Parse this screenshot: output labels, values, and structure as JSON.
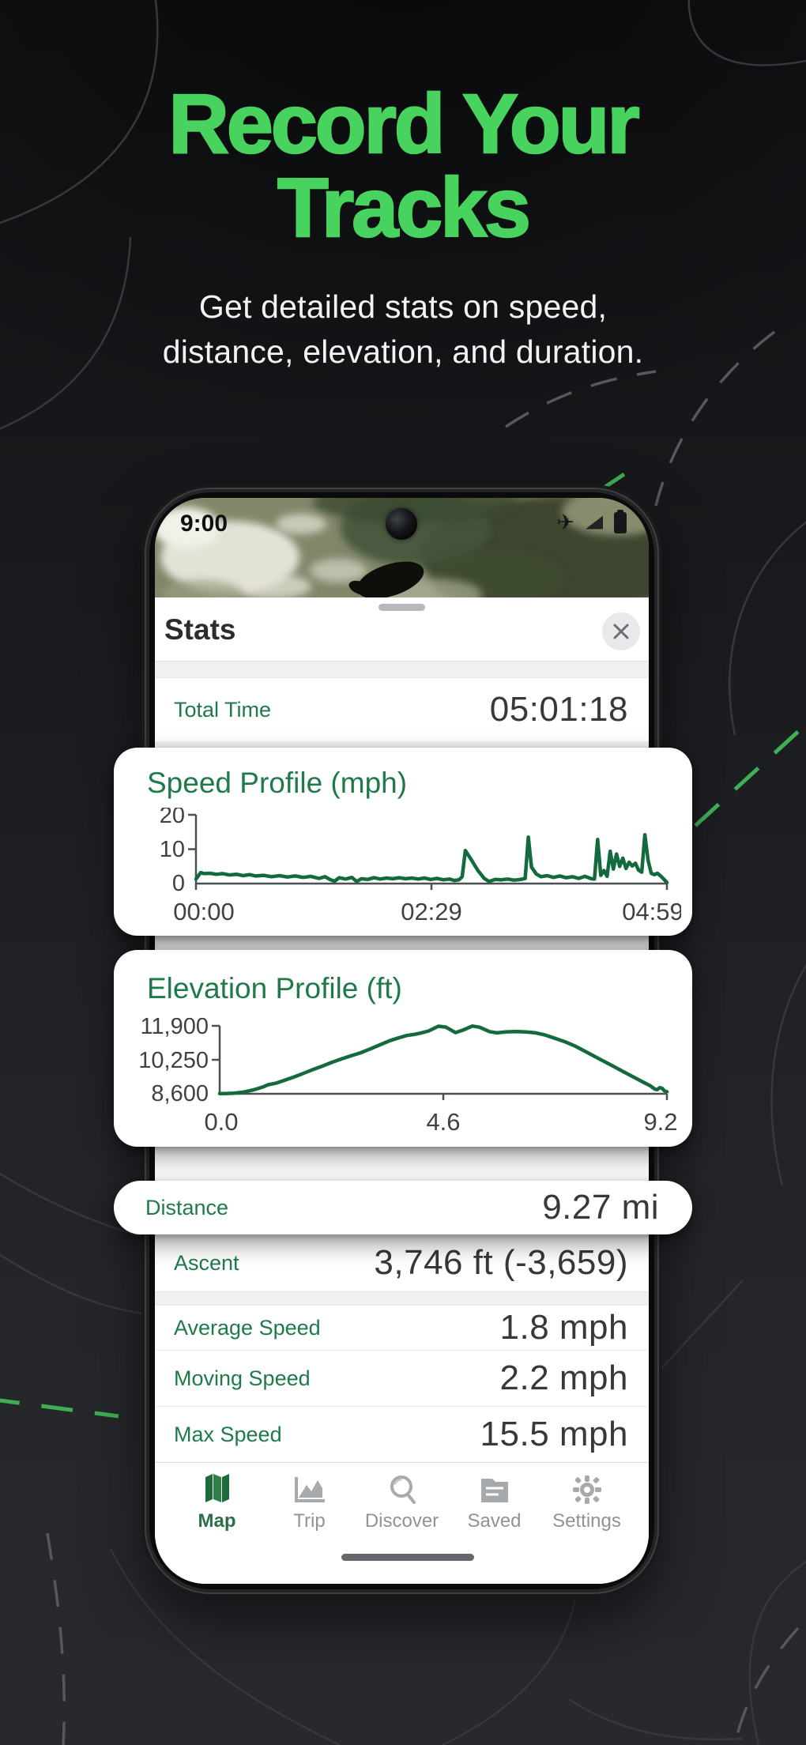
{
  "hero": {
    "title_line1": "Record Your",
    "title_line2": "Tracks",
    "subtitle_line1": "Get detailed stats on speed,",
    "subtitle_line2": "distance, elevation, and duration.",
    "accent_color": "#48d35e"
  },
  "phone": {
    "status_bar": {
      "time": "9:00",
      "icons": [
        "airplane-mode-icon",
        "signal-icon",
        "battery-icon"
      ]
    },
    "sheet": {
      "title": "Stats"
    }
  },
  "stats": {
    "total_time": {
      "label": "Total Time",
      "value": "05:01:18"
    },
    "distance": {
      "label": "Distance",
      "value": "9.27 mi"
    },
    "ascent": {
      "label": "Ascent",
      "value": "3,746 ft (-3,659)"
    },
    "average_speed": {
      "label": "Average Speed",
      "value": "1.8 mph"
    },
    "moving_speed": {
      "label": "Moving Speed",
      "value": "2.2 mph"
    },
    "max_speed": {
      "label": "Max Speed",
      "value": "15.5 mph"
    }
  },
  "chart_data": [
    {
      "id": "speed",
      "type": "line",
      "title": "Speed Profile (mph)",
      "xlim": [
        0,
        299
      ],
      "ylim": [
        0,
        20
      ],
      "x_ticks": [
        "00:00",
        "02:29",
        "04:59"
      ],
      "y_ticks": [
        "0",
        "10",
        "20"
      ],
      "legend": "none",
      "grid": false,
      "line_color": "#136a3c",
      "points": [
        [
          0,
          1.3
        ],
        [
          3,
          3.2
        ],
        [
          5,
          2.9
        ],
        [
          9,
          3.0
        ],
        [
          13,
          2.7
        ],
        [
          17,
          2.9
        ],
        [
          21,
          2.5
        ],
        [
          26,
          2.7
        ],
        [
          30,
          2.3
        ],
        [
          34,
          2.6
        ],
        [
          38,
          2.2
        ],
        [
          43,
          2.4
        ],
        [
          48,
          2.0
        ],
        [
          53,
          2.3
        ],
        [
          58,
          1.9
        ],
        [
          63,
          2.2
        ],
        [
          68,
          1.8
        ],
        [
          73,
          2.1
        ],
        [
          78,
          1.5
        ],
        [
          82,
          2.0
        ],
        [
          85,
          1.2
        ],
        [
          88,
          0.7
        ],
        [
          91,
          1.7
        ],
        [
          95,
          1.3
        ],
        [
          99,
          1.8
        ],
        [
          102,
          0.6
        ],
        [
          105,
          1.4
        ],
        [
          109,
          1.2
        ],
        [
          113,
          1.7
        ],
        [
          117,
          1.3
        ],
        [
          121,
          1.6
        ],
        [
          125,
          1.4
        ],
        [
          129,
          1.7
        ],
        [
          133,
          1.4
        ],
        [
          137,
          1.6
        ],
        [
          141,
          1.3
        ],
        [
          145,
          1.6
        ],
        [
          149,
          1.2
        ],
        [
          153,
          1.5
        ],
        [
          157,
          1.1
        ],
        [
          161,
          1.3
        ],
        [
          164,
          0.9
        ],
        [
          167,
          1.1
        ],
        [
          169,
          2.0
        ],
        [
          171,
          9.6
        ],
        [
          175,
          6.8
        ],
        [
          179,
          3.8
        ],
        [
          183,
          1.5
        ],
        [
          186,
          0.6
        ],
        [
          190,
          1.2
        ],
        [
          194,
          1.1
        ],
        [
          198,
          1.3
        ],
        [
          202,
          1.0
        ],
        [
          206,
          1.2
        ],
        [
          209,
          1.5
        ],
        [
          211,
          13.5
        ],
        [
          213,
          4.8
        ],
        [
          216,
          2.8
        ],
        [
          219,
          2.0
        ],
        [
          223,
          2.3
        ],
        [
          227,
          1.8
        ],
        [
          231,
          2.2
        ],
        [
          235,
          1.7
        ],
        [
          239,
          2.0
        ],
        [
          243,
          1.5
        ],
        [
          247,
          2.1
        ],
        [
          251,
          1.4
        ],
        [
          253,
          1.3
        ],
        [
          255,
          12.8
        ],
        [
          257,
          2.4
        ],
        [
          259,
          3.8
        ],
        [
          261,
          2.1
        ],
        [
          263,
          9.4
        ],
        [
          265,
          4.2
        ],
        [
          267,
          8.6
        ],
        [
          269,
          5.0
        ],
        [
          271,
          7.4
        ],
        [
          273,
          4.4
        ],
        [
          275,
          6.2
        ],
        [
          277,
          5.1
        ],
        [
          279,
          5.9
        ],
        [
          281,
          3.9
        ],
        [
          283,
          3.3
        ],
        [
          285,
          14.2
        ],
        [
          287,
          6.8
        ],
        [
          289,
          3.0
        ],
        [
          291,
          2.6
        ],
        [
          293,
          3.0
        ],
        [
          295,
          2.2
        ],
        [
          297,
          1.3
        ],
        [
          299,
          0.3
        ]
      ]
    },
    {
      "id": "elevation",
      "type": "line",
      "title": "Elevation Profile (ft)",
      "xlim": [
        0,
        9.2
      ],
      "ylim": [
        8600,
        11900
      ],
      "x_ticks": [
        "0.0",
        "4.6",
        "9.2"
      ],
      "y_ticks": [
        "8,600",
        "10,250",
        "11,900"
      ],
      "legend": "none",
      "grid": false,
      "line_color": "#136a3c",
      "points": [
        [
          0,
          8610
        ],
        [
          0.15,
          8615
        ],
        [
          0.3,
          8630
        ],
        [
          0.5,
          8690
        ],
        [
          0.7,
          8790
        ],
        [
          0.9,
          8940
        ],
        [
          1.0,
          9040
        ],
        [
          1.15,
          9110
        ],
        [
          1.3,
          9230
        ],
        [
          1.5,
          9390
        ],
        [
          1.7,
          9570
        ],
        [
          1.9,
          9760
        ],
        [
          2.1,
          9930
        ],
        [
          2.3,
          10120
        ],
        [
          2.5,
          10290
        ],
        [
          2.7,
          10440
        ],
        [
          2.9,
          10590
        ],
        [
          3.1,
          10780
        ],
        [
          3.3,
          10980
        ],
        [
          3.5,
          11180
        ],
        [
          3.7,
          11330
        ],
        [
          3.85,
          11430
        ],
        [
          4.0,
          11480
        ],
        [
          4.15,
          11560
        ],
        [
          4.3,
          11650
        ],
        [
          4.5,
          11880
        ],
        [
          4.65,
          11840
        ],
        [
          4.85,
          11570
        ],
        [
          5.0,
          11690
        ],
        [
          5.2,
          11890
        ],
        [
          5.35,
          11830
        ],
        [
          5.55,
          11620
        ],
        [
          5.7,
          11560
        ],
        [
          5.9,
          11610
        ],
        [
          6.1,
          11620
        ],
        [
          6.3,
          11600
        ],
        [
          6.5,
          11560
        ],
        [
          6.7,
          11450
        ],
        [
          6.9,
          11290
        ],
        [
          7.1,
          11130
        ],
        [
          7.3,
          10930
        ],
        [
          7.5,
          10680
        ],
        [
          7.7,
          10430
        ],
        [
          7.9,
          10180
        ],
        [
          8.1,
          9930
        ],
        [
          8.3,
          9680
        ],
        [
          8.5,
          9430
        ],
        [
          8.7,
          9180
        ],
        [
          8.85,
          9000
        ],
        [
          8.95,
          8830
        ],
        [
          9.0,
          8800
        ],
        [
          9.05,
          8900
        ],
        [
          9.1,
          8870
        ],
        [
          9.15,
          8740
        ],
        [
          9.2,
          8700
        ]
      ]
    }
  ],
  "tab_bar": {
    "active_color": "#1f6b3a",
    "inactive_color": "#a6aaad",
    "tabs": [
      {
        "label": "Map",
        "icon": "map-icon",
        "active": true
      },
      {
        "label": "Trip",
        "icon": "trip-icon",
        "active": false
      },
      {
        "label": "Discover",
        "icon": "discover-icon",
        "active": false
      },
      {
        "label": "Saved",
        "icon": "saved-icon",
        "active": false
      },
      {
        "label": "Settings",
        "icon": "settings-icon",
        "active": false
      }
    ]
  }
}
